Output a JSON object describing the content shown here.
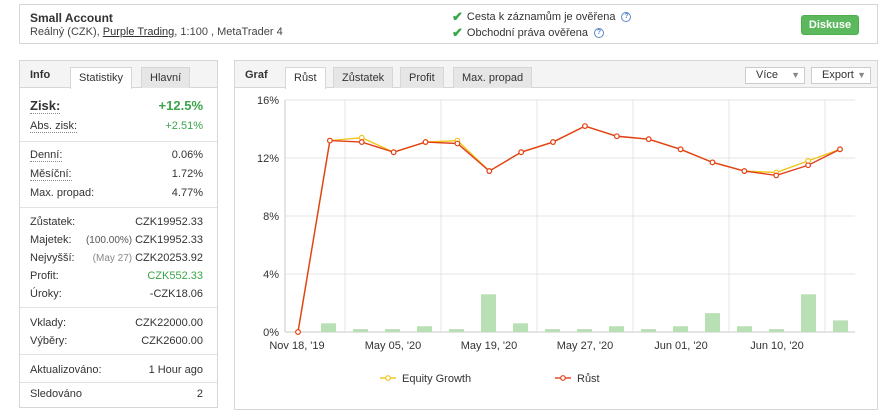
{
  "header": {
    "title": "Small Account",
    "sub_prefix": "Reálný (CZK), ",
    "broker": "Purple Trading",
    "sub_suffix": ", 1:100 , MetaTrader 4",
    "verify1": "Cesta k záznamům je ověřena",
    "verify2": "Obchodní práva ověřena",
    "discuss": "Diskuse"
  },
  "left": {
    "label": "Info",
    "tabs": [
      "Statistiky",
      "Hlavní"
    ],
    "gain_label": "Zisk:",
    "gain_value": "+12.5%",
    "abs_label": "Abs. zisk:",
    "abs_value": "+2.51%",
    "daily_label": "Denní:",
    "daily_value": "0.06%",
    "monthly_label": "Měsíční:",
    "monthly_value": "1.72%",
    "dd_label": "Max. propad:",
    "dd_value": "4.77%",
    "balance_label": "Zůstatek:",
    "balance_value": "CZK19952.33",
    "equity_label": "Majetek:",
    "equity_pct": "(100.00%)",
    "equity_value": "CZK19952.33",
    "highest_label": "Nejvyšší:",
    "highest_date": "(May 27)",
    "highest_value": "CZK20253.92",
    "profit_label": "Profit:",
    "profit_value": "CZK552.33",
    "interest_label": "Úroky:",
    "interest_value": "-CZK18.06",
    "deposits_label": "Vklady:",
    "deposits_value": "CZK22000.00",
    "withdrawals_label": "Výběry:",
    "withdrawals_value": "CZK2600.00",
    "updated_label": "Aktualizováno:",
    "updated_value": "1 Hour ago",
    "tracked_label": "Sledováno",
    "tracked_value": "2"
  },
  "right": {
    "label": "Graf",
    "tabs": [
      "Růst",
      "Zůstatek",
      "Profit",
      "Max. propad"
    ],
    "more": "Více",
    "export": "Export"
  },
  "colors": {
    "equity": "#f0c419",
    "growth": "#e2401c",
    "bars": "#b9e0b5",
    "accent_green": "#5cb85c"
  },
  "chart_data": {
    "type": "line",
    "x_ticks": [
      "Nov 18, '19",
      "May 05, '20",
      "May 19, '20",
      "May 27, '20",
      "Jun 01, '20",
      "Jun 10, '20"
    ],
    "y_ticks": [
      "16%",
      "12%",
      "8%",
      "4%",
      "0%"
    ],
    "ylim": [
      0,
      16
    ],
    "series": [
      {
        "name": "Equity Growth",
        "values": [
          0,
          13.2,
          13.4,
          12.4,
          13.1,
          13.2,
          11.1,
          12.4,
          13.1,
          14.2,
          13.5,
          13.3,
          12.6,
          11.7,
          11.1,
          11.0,
          11.8,
          12.6
        ]
      },
      {
        "name": "Růst",
        "values": [
          0,
          13.2,
          13.1,
          12.4,
          13.1,
          13.0,
          11.1,
          12.4,
          13.1,
          14.2,
          13.5,
          13.3,
          12.6,
          11.7,
          11.1,
          10.8,
          11.5,
          12.6
        ]
      }
    ],
    "bars": [
      0.6,
      0.2,
      0.2,
      0.4,
      0.2,
      2.6,
      0.6,
      0.2,
      0.2,
      0.4,
      0.2,
      0.4,
      1.3,
      0.4,
      0.2,
      2.6,
      0.8
    ]
  }
}
